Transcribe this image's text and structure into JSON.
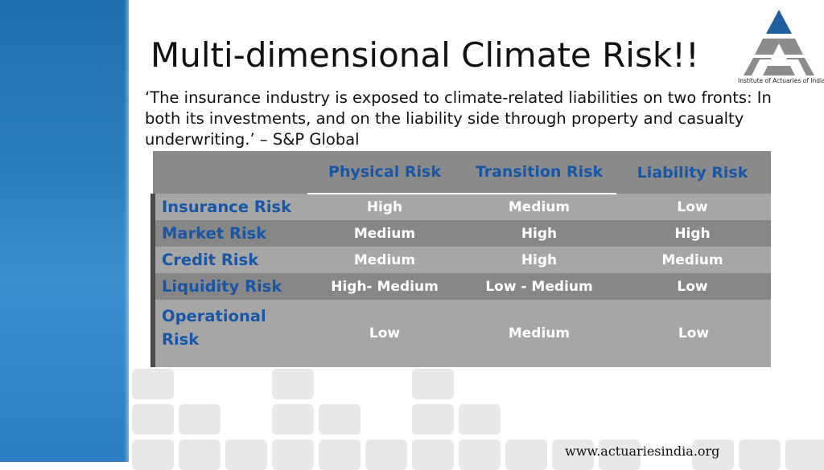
{
  "slide": {
    "title": "Multi-dimensional Climate Risk!!",
    "quote": "‘The insurance industry is exposed to climate-related liabilities on two fronts: In both its investments, and on the liability side through property and casualty underwriting.’ – S&P Global",
    "logo": {
      "icon": "iai-triangle-logo-icon",
      "caption": "Institute of Actuaries of India",
      "colors": {
        "top": "#1f5f9e",
        "bottom": "#8c8c8c"
      }
    },
    "footer": "www.actuariesindia.org"
  },
  "table": {
    "columns": [
      "",
      "Physical Risk",
      "Transition Risk",
      "Liability Risk"
    ],
    "rows": [
      {
        "label": "Insurance Risk",
        "values": [
          "High",
          "Medium",
          "Low"
        ]
      },
      {
        "label": "Market Risk",
        "values": [
          "Medium",
          "High",
          "High"
        ]
      },
      {
        "label": "Credit Risk",
        "values": [
          "Medium",
          "High",
          "Medium"
        ]
      },
      {
        "label": "Liquidity Risk",
        "values": [
          "High- Medium",
          "Low - Medium",
          "Low"
        ]
      },
      {
        "label": "Operational Risk",
        "values": [
          "Low",
          "Medium",
          "Low"
        ]
      }
    ]
  },
  "theme": {
    "accent_blue": "#1a56a6",
    "band_blue": "#2a7dbd",
    "table_gray_dark": "#878787",
    "table_gray_light": "#a6a6a6"
  }
}
